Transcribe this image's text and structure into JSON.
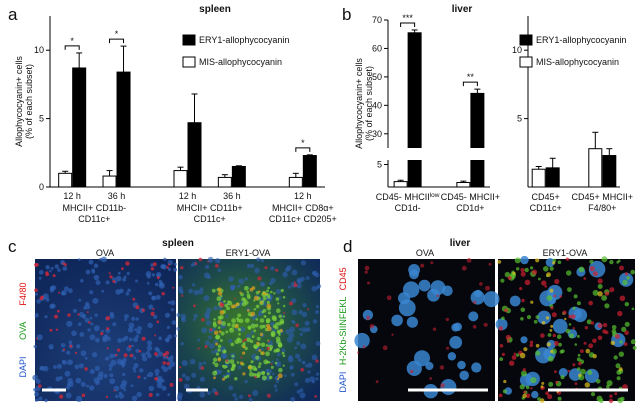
{
  "chart_data": [
    {
      "type": "bar",
      "panel_label": "a",
      "title": "spleen",
      "ylabel": [
        "Allophycocyanin+ cells",
        "(% of each subset)"
      ],
      "groups": [
        {
          "lines": [
            "MHCII+ CD11b-",
            "CD11c+"
          ],
          "categories": [
            "12 h",
            "36 h"
          ]
        },
        {
          "lines": [
            "MHCII+ CD11b+",
            "CD11c+"
          ],
          "categories": [
            "12 h",
            "36 h"
          ]
        },
        {
          "lines": [
            "MHCII+ CD8α+",
            "CD11c+ CD205+"
          ],
          "categories": [
            "12 h"
          ]
        }
      ],
      "series": [
        {
          "name": "ERY1-allophycocyanin",
          "color": "#000000",
          "values": [
            8.7,
            8.4,
            4.7,
            1.5,
            2.3
          ],
          "errors": [
            1.1,
            1.9,
            2.1,
            0.05,
            0.05
          ]
        },
        {
          "name": "MIS-allophycocyanin",
          "color": "#ffffff",
          "values": [
            1.0,
            0.8,
            1.2,
            0.7,
            0.7
          ],
          "errors": [
            0.15,
            0.4,
            0.25,
            0.2,
            0.3
          ]
        }
      ],
      "significance": [
        "*",
        "*",
        null,
        null,
        "*"
      ],
      "ylim": [
        0,
        12.5
      ],
      "yticks": [
        0,
        5,
        10
      ],
      "legend": "upper-center"
    },
    {
      "type": "bar",
      "panel_label": "b",
      "title": "liver",
      "ylabel": [
        "Allophycocyanin+ cells",
        "(% of each subset)"
      ],
      "groups": [
        {
          "lines": [
            {
              "text": "CD45- MHCII",
              "sup": "low"
            },
            "CD1d-"
          ],
          "categories": [
            null
          ]
        },
        {
          "lines": [
            "CD45- MHCII+",
            "CD1d+"
          ],
          "categories": [
            null
          ]
        }
      ],
      "series": [
        {
          "color": "#000000",
          "values": [
            65.5,
            44.2
          ],
          "errors": [
            1.0,
            1.5
          ]
        },
        {
          "color": "#ffffff",
          "values": [
            1.2,
            1.0
          ],
          "errors": [
            0.3,
            0.3
          ]
        }
      ],
      "significance": [
        "***",
        "**"
      ],
      "ylim": [
        0,
        70
      ],
      "axis_break": [
        6,
        25
      ],
      "yticks": [
        5,
        30,
        40,
        50,
        60,
        70
      ]
    },
    {
      "type": "bar",
      "groups": [
        {
          "lines": [
            "CD45+",
            "CD11c+"
          ],
          "categories": [
            null
          ]
        },
        {
          "lines": [
            "CD45+ MHCII+",
            "F4/80+"
          ],
          "categories": [
            null
          ]
        }
      ],
      "series": [
        {
          "name": "ERY1-allophycocyanin",
          "color": "#000000",
          "values": [
            1.4,
            2.3
          ],
          "errors": [
            0.7,
            0.5
          ]
        },
        {
          "name": "MIS-allophycocyanin",
          "color": "#ffffff",
          "values": [
            1.3,
            2.8
          ],
          "errors": [
            0.2,
            1.2
          ]
        }
      ],
      "ylim": [
        0,
        12.5
      ],
      "yticks": [
        5,
        10
      ],
      "legend": "upper-right"
    }
  ],
  "figure": {
    "c": {
      "label": "c",
      "title": "spleen",
      "columns": [
        "OVA",
        "ERY1-OVA"
      ],
      "channels": [
        "DAPI",
        "OVA",
        "F4/80"
      ]
    },
    "d": {
      "label": "d",
      "title": "liver",
      "columns": [
        "OVA",
        "ERY1-OVA"
      ],
      "channels": [
        "DAPI",
        "H-2Kb-SIINFEKL",
        "CD45"
      ]
    }
  }
}
